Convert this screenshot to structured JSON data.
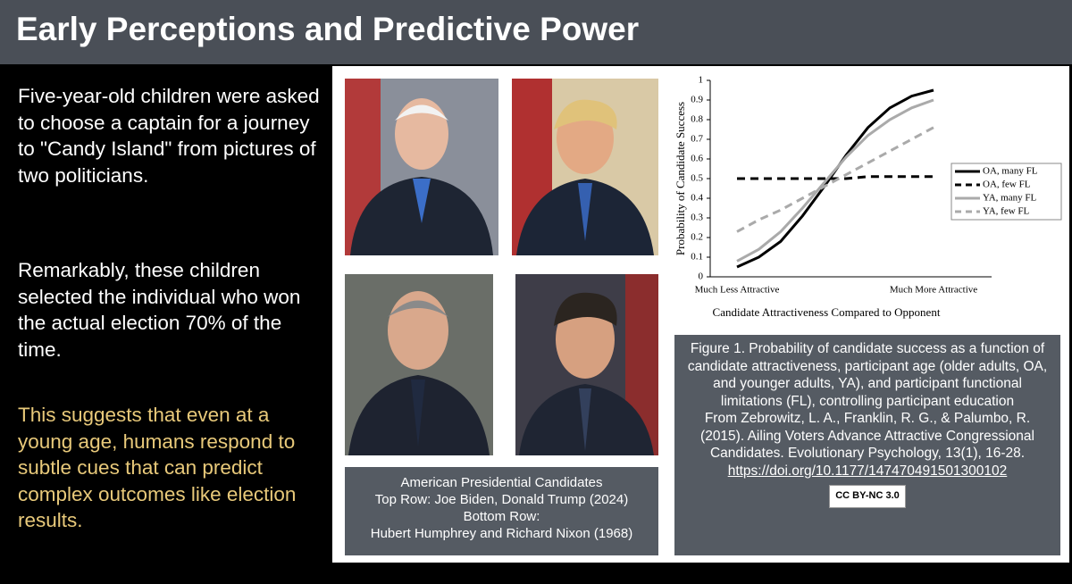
{
  "header": {
    "title": "Early Perceptions and Predictive Power"
  },
  "left": {
    "paragraphs": [
      "Five-year-old children were asked to choose a captain for a journey to \"Candy Island\" from pictures of two politicians.",
      "Remarkably, these children selected the individual who won the actual election 70% of the time.",
      "This suggests that even at a young age, humans respond to subtle cues that can predict complex outcomes like election results."
    ]
  },
  "photo_caption": {
    "lines": [
      "American Presidential Candidates",
      "Top Row: Joe Biden, Donald Trump (2024)",
      "Bottom Row:",
      "Hubert Humphrey and Richard Nixon  (1968)"
    ]
  },
  "figure_caption": {
    "lines": [
      "Figure 1. Probability of candidate success as a function of candidate attractiveness, participant age (older adults, OA, and younger adults, YA), and participant functional limitations (FL), controlling participant education",
      "From Zebrowitz, L. A., Franklin, R. G., & Palumbo, R. (2015). Ailing Voters Advance Attractive Congressional Candidates. Evolutionary Psychology, 13(1), 16-28."
    ],
    "link": "https://doi.org/10.1177/147470491501300102",
    "license": "CC BY-NC 3.0"
  },
  "chart_data": {
    "type": "line",
    "x_label": "Candidate Attractiveness Compared to Opponent",
    "y_label": "Probability of Candidate Success",
    "categories": [
      "Much Less Attractive",
      null,
      null,
      null,
      null,
      null,
      null,
      null,
      null,
      "Much More Attractive"
    ],
    "ylim": [
      0,
      1
    ],
    "yticks": [
      0,
      0.1,
      0.2,
      0.3,
      0.4,
      0.5,
      0.6,
      0.7,
      0.8,
      0.9,
      1
    ],
    "legend": "right",
    "series": [
      {
        "name": "OA, many FL",
        "color": "#000000",
        "line_style": "solid",
        "values": [
          0.05,
          0.1,
          0.18,
          0.31,
          0.46,
          0.62,
          0.76,
          0.86,
          0.92,
          0.95
        ]
      },
      {
        "name": "OA, few FL",
        "color": "#000000",
        "line_style": "dashed",
        "values": [
          0.5,
          0.5,
          0.5,
          0.5,
          0.5,
          0.5,
          0.51,
          0.51,
          0.51,
          0.51
        ]
      },
      {
        "name": "YA, many FL",
        "color": "#aaaaaa",
        "line_style": "solid",
        "values": [
          0.08,
          0.14,
          0.23,
          0.35,
          0.48,
          0.61,
          0.72,
          0.8,
          0.86,
          0.9
        ]
      },
      {
        "name": "YA, few FL",
        "color": "#aaaaaa",
        "line_style": "dashed",
        "values": [
          0.23,
          0.29,
          0.34,
          0.4,
          0.46,
          0.52,
          0.58,
          0.64,
          0.7,
          0.76
        ]
      }
    ]
  }
}
